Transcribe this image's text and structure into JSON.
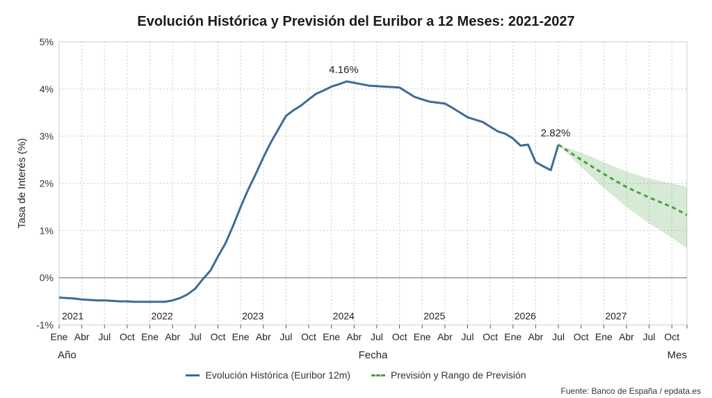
{
  "chart_data": {
    "type": "line",
    "title": "Evolución Histórica y Previsión del Euribor a 12 Meses: 2021-2027",
    "xlabel": "Fecha",
    "ylabel": "Tasa de Interés (%)",
    "x_extra_labels": {
      "left": "Año",
      "right": "Mes"
    },
    "ylim": [
      -1,
      5
    ],
    "yticks": [
      "-1%",
      "0%",
      "1%",
      "2%",
      "3%",
      "4%",
      "5%"
    ],
    "xticks": [
      "Ene",
      "Abr",
      "Jul",
      "Oct",
      "Ene",
      "Abr",
      "Jul",
      "Oct",
      "Ene",
      "Abr",
      "Jul",
      "Oct",
      "Ene",
      "Abr",
      "Jul",
      "Oct",
      "Ene",
      "Abr",
      "Jul",
      "Oct",
      "Ene",
      "Abr",
      "Jul",
      "Oct",
      "Ene",
      "Abr",
      "Jul",
      "Oct"
    ],
    "years": [
      "2021",
      "2022",
      "2023",
      "2024",
      "2025",
      "2026",
      "2027"
    ],
    "grid": true,
    "series": [
      {
        "name": "Evolución Histórica (Euribor 12m)",
        "color": "#3d6a96",
        "x": [
          "2021-01",
          "2021-02",
          "2021-03",
          "2021-04",
          "2021-05",
          "2021-06",
          "2021-07",
          "2021-08",
          "2021-09",
          "2021-10",
          "2021-11",
          "2021-12",
          "2022-01",
          "2022-02",
          "2022-03",
          "2022-04",
          "2022-05",
          "2022-06",
          "2022-07",
          "2022-08",
          "2022-09",
          "2022-10",
          "2022-11",
          "2022-12",
          "2023-01",
          "2023-02",
          "2023-03",
          "2023-04",
          "2023-05",
          "2023-06",
          "2023-07",
          "2023-08",
          "2023-09",
          "2023-10",
          "2023-11",
          "2023-12",
          "2024-01",
          "2024-02",
          "2024-03",
          "2024-04",
          "2024-05",
          "2024-06",
          "2024-07",
          "2024-08",
          "2024-09",
          "2024-10",
          "2024-11",
          "2024-12",
          "2025-01",
          "2025-02",
          "2025-03",
          "2025-04",
          "2025-05",
          "2025-06",
          "2025-07",
          "2025-08",
          "2025-09",
          "2025-10",
          "2025-11",
          "2025-12",
          "2026-01",
          "2026-02",
          "2026-03",
          "2026-04",
          "2026-05",
          "2026-06",
          "2026-07"
        ],
        "y": [
          -0.42,
          -0.43,
          -0.44,
          -0.46,
          -0.47,
          -0.48,
          -0.48,
          -0.49,
          -0.5,
          -0.5,
          -0.51,
          -0.51,
          -0.51,
          -0.51,
          -0.51,
          -0.48,
          -0.43,
          -0.35,
          -0.23,
          -0.03,
          0.15,
          0.45,
          0.73,
          1.1,
          1.5,
          1.87,
          2.2,
          2.55,
          2.87,
          3.15,
          3.43,
          3.55,
          3.65,
          3.78,
          3.9,
          3.97,
          4.05,
          4.1,
          4.16,
          4.13,
          4.1,
          4.07,
          4.06,
          4.05,
          4.04,
          4.03,
          3.93,
          3.83,
          3.78,
          3.73,
          3.71,
          3.69,
          3.6,
          3.5,
          3.4,
          3.35,
          3.3,
          3.2,
          3.1,
          3.05,
          2.95,
          2.8,
          2.82,
          2.45,
          2.36,
          2.28,
          2.82
        ]
      },
      {
        "name": "Previsión y Rango de Previsión",
        "color": "#4a9e3f",
        "dashed": true,
        "x": [
          "2026-07",
          "2026-10",
          "2027-01",
          "2027-04",
          "2027-07",
          "2027-10",
          "2027-12"
        ],
        "y": [
          2.82,
          2.5,
          2.2,
          1.92,
          1.7,
          1.5,
          1.33
        ],
        "range_low": [
          2.82,
          2.35,
          1.9,
          1.5,
          1.15,
          0.85,
          0.62
        ],
        "range_high": [
          2.82,
          2.65,
          2.45,
          2.25,
          2.1,
          2.0,
          1.93
        ]
      }
    ],
    "annotations": [
      {
        "x": "2024-03",
        "y": 4.16,
        "text": "4.16%"
      },
      {
        "x": "2026-07",
        "y": 2.82,
        "text": "2.82%"
      }
    ]
  },
  "legend": {
    "historical": "Evolución Histórica (Euribor 12m)",
    "forecast": "Previsión y Rango de Previsión"
  },
  "source": "Fuente: Banco de España / epdata.es"
}
